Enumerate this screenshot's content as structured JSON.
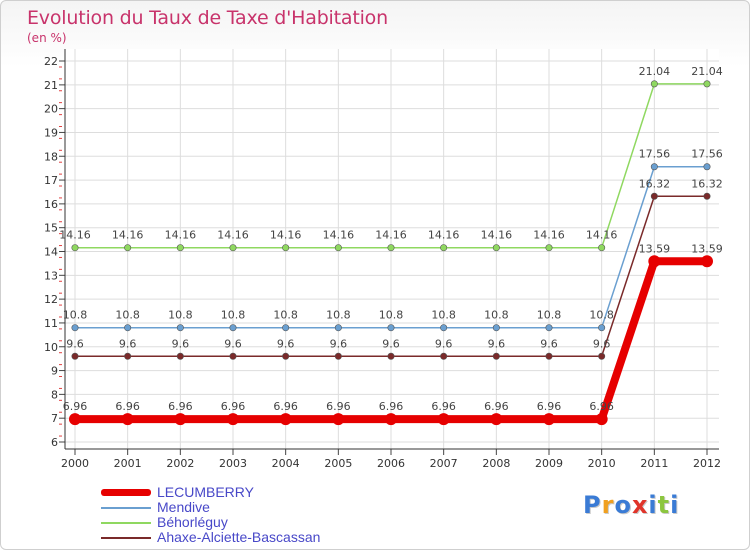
{
  "chart_data": {
    "type": "line",
    "title": "Evolution du Taux de Taxe d'Habitation",
    "subtitle": "(en %)",
    "x": [
      "2000",
      "2001",
      "2002",
      "2003",
      "2004",
      "2005",
      "2006",
      "2007",
      "2008",
      "2009",
      "2010",
      "2011",
      "2012"
    ],
    "ylim": [
      6,
      22
    ],
    "yticks": [
      6,
      7,
      8,
      9,
      10,
      11,
      12,
      13,
      14,
      15,
      16,
      17,
      18,
      19,
      20,
      21,
      22
    ],
    "grid": true,
    "series": [
      {
        "name": "LECUMBERRY",
        "color": "#e60000",
        "values": [
          6.96,
          6.96,
          6.96,
          6.96,
          6.96,
          6.96,
          6.96,
          6.96,
          6.96,
          6.96,
          6.96,
          13.59,
          13.59
        ],
        "labels": [
          "6.96",
          "6.96",
          "6.96",
          "6.96",
          "6.96",
          "6.96",
          "6.96",
          "6.96",
          "6.96",
          "6.96",
          "6.96",
          "13.59",
          "13.59"
        ]
      },
      {
        "name": "Mendive",
        "color": "#6a9fd0",
        "values": [
          10.8,
          10.8,
          10.8,
          10.8,
          10.8,
          10.8,
          10.8,
          10.8,
          10.8,
          10.8,
          10.8,
          17.56,
          17.56
        ],
        "labels": [
          "10.8",
          "10.8",
          "10.8",
          "10.8",
          "10.8",
          "10.8",
          "10.8",
          "10.8",
          "10.8",
          "10.8",
          "10.8",
          "17.56",
          "17.56"
        ]
      },
      {
        "name": "Béhorléguy",
        "color": "#8fd860",
        "values": [
          14.16,
          14.16,
          14.16,
          14.16,
          14.16,
          14.16,
          14.16,
          14.16,
          14.16,
          14.16,
          14.16,
          21.04,
          21.04
        ],
        "labels": [
          "14.16",
          "14.16",
          "14.16",
          "14.16",
          "14.16",
          "14.16",
          "14.16",
          "14.16",
          "14.16",
          "14.16",
          "14.16",
          "21.04",
          "21.04"
        ]
      },
      {
        "name": "Ahaxe-Alciette-Bascassan",
        "color": "#7a2a2a",
        "values": [
          9.6,
          9.6,
          9.6,
          9.6,
          9.6,
          9.6,
          9.6,
          9.6,
          9.6,
          9.6,
          9.6,
          16.32,
          16.32
        ],
        "labels": [
          "9.6",
          "9.6",
          "9.6",
          "9.6",
          "9.6",
          "9.6",
          "9.6",
          "9.6",
          "9.6",
          "9.6",
          "9.6",
          "16.32",
          "16.32"
        ]
      }
    ]
  },
  "legend": {
    "items": [
      {
        "label": "LECUMBERRY",
        "color": "#e60000"
      },
      {
        "label": "Mendive",
        "color": "#6a9fd0"
      },
      {
        "label": "Béhorléguy",
        "color": "#8fd860"
      },
      {
        "label": "Ahaxe-Alciette-Bascassan",
        "color": "#7a2a2a"
      }
    ]
  },
  "logo": {
    "letters": [
      "P",
      "r",
      "o",
      "x",
      "i",
      "t",
      "i"
    ],
    "colors": [
      "#3a7bd5",
      "#f0a020",
      "#3a7bd5",
      "#e0342a",
      "#3a7bd5",
      "#8cc63f",
      "#3a7bd5"
    ]
  }
}
